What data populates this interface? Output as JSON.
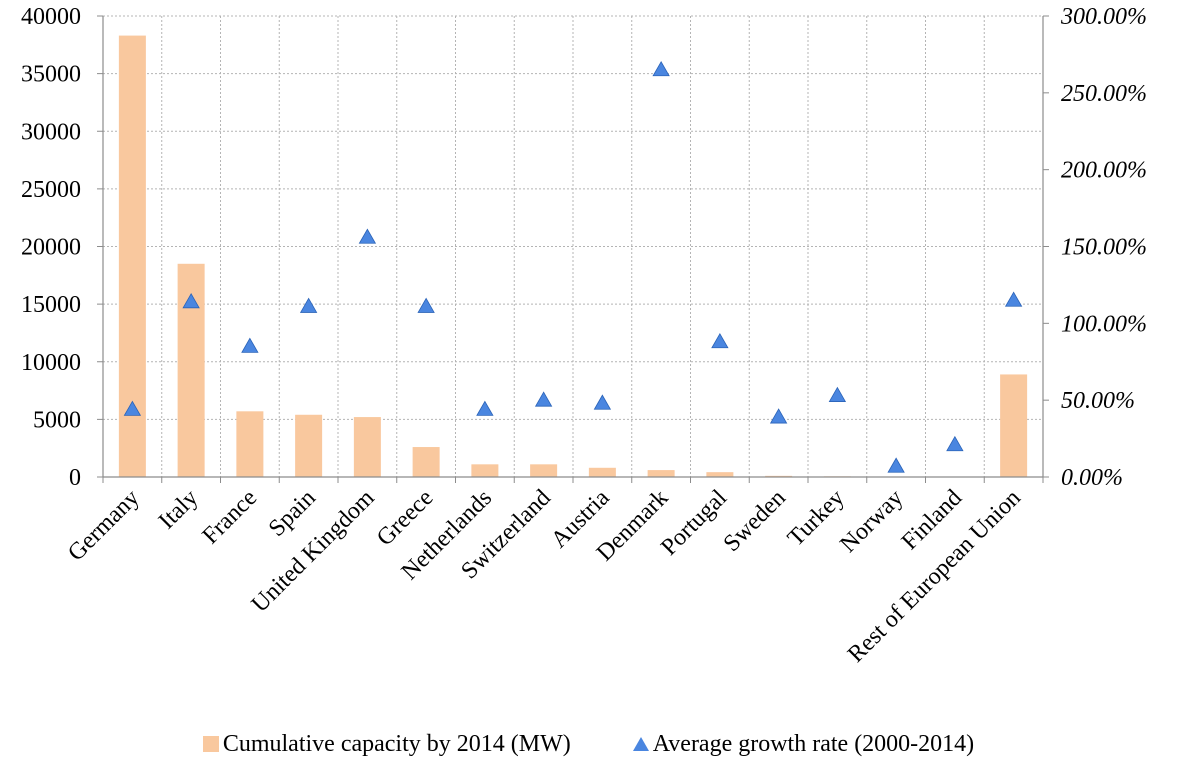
{
  "chart_data": {
    "type": "bar",
    "categories": [
      "Germany",
      "Italy",
      "France",
      "Spain",
      "United Kingdom",
      "Greece",
      "Netherlands",
      "Switzerland",
      "Austria",
      "Denmark",
      "Portugal",
      "Sweden",
      "Turkey",
      "Norway",
      "Finland",
      "Rest of European Union"
    ],
    "series": [
      {
        "name": "Cumulative capacity by 2014 (MW)",
        "type": "bar",
        "axis": "left",
        "color": "#f9c89e",
        "values": [
          38300,
          18500,
          5700,
          5400,
          5200,
          2600,
          1100,
          1100,
          800,
          600,
          420,
          100,
          60,
          15,
          10,
          8900
        ]
      },
      {
        "name": "Average growth rate (2000-2014)",
        "type": "scatter",
        "axis": "right",
        "color": "#4a86e0",
        "values": [
          0.44,
          1.14,
          0.85,
          1.11,
          1.56,
          1.11,
          0.44,
          0.5,
          0.48,
          2.65,
          0.88,
          0.39,
          0.53,
          0.07,
          0.21,
          1.15
        ]
      }
    ],
    "y_left": {
      "ylim": [
        0,
        40000
      ],
      "ticks": [
        "0",
        "5000",
        "10000",
        "15000",
        "20000",
        "25000",
        "30000",
        "35000",
        "40000"
      ]
    },
    "y_right": {
      "ylim": [
        0,
        3.0
      ],
      "ticks": [
        "0.00%",
        "50.00%",
        "100.00%",
        "150.00%",
        "200.00%",
        "250.00%",
        "300.00%"
      ]
    },
    "grid": true,
    "legend_placement": "bottom"
  }
}
